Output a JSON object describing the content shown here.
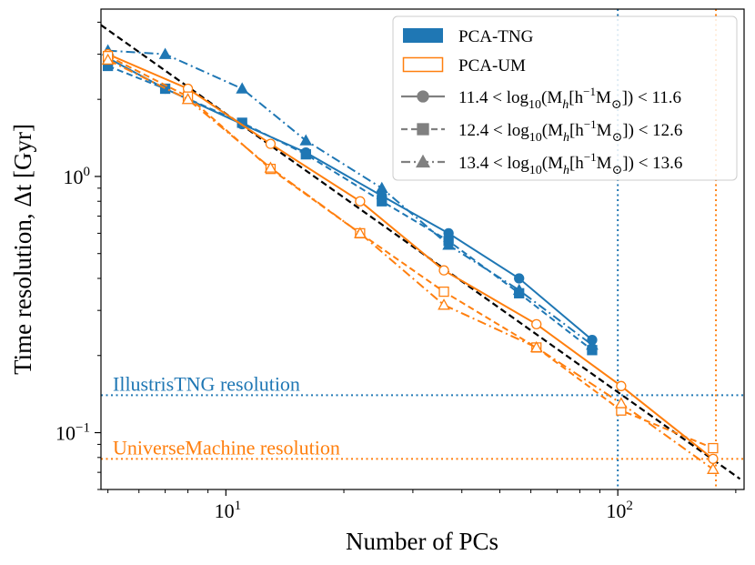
{
  "chart_data": {
    "type": "line",
    "xscale": "log",
    "yscale": "log",
    "xlim": [
      4.8,
      210
    ],
    "ylim": [
      0.06,
      4.5
    ],
    "xlabel": "Number of PCs",
    "ylabel": "Time resolution, Δt [Gyr]",
    "x_ticks": [
      {
        "value": 10,
        "label": "10",
        "exp": "1"
      },
      {
        "value": 100,
        "label": "10",
        "exp": "2"
      }
    ],
    "y_ticks": [
      {
        "value": 0.1,
        "label": "10",
        "exp": "−1"
      },
      {
        "value": 1,
        "label": "10",
        "exp": "0"
      }
    ],
    "colors": {
      "tng": "#1f77b4",
      "um": "#ff7f0e",
      "legend_gray": "#808080",
      "fit": "#000000"
    },
    "legend": {
      "placement": "top-right",
      "entries": [
        {
          "key": "tng",
          "label": "PCA-TNG",
          "type": "patch-filled"
        },
        {
          "key": "um",
          "label": "PCA-UM",
          "type": "patch-open"
        },
        {
          "key": "mass1",
          "label_pre": "11.4 < log",
          "label_post": "(M",
          "h_sub": "h",
          "unit": "[h",
          "sup": "−1",
          "unit2": "M",
          "sun": "⊙",
          "label_end": "]) < 11.6",
          "sub10": "10",
          "marker": "circle",
          "dash": "solid"
        },
        {
          "key": "mass2",
          "label_pre": "12.4 < log",
          "label_post": "(M",
          "h_sub": "h",
          "unit": "[h",
          "sup": "−1",
          "unit2": "M",
          "sun": "⊙",
          "label_end": "]) < 12.6",
          "sub10": "10",
          "marker": "square",
          "dash": "dashed"
        },
        {
          "key": "mass3",
          "label_pre": "13.4 < log",
          "label_post": "(M",
          "h_sub": "h",
          "unit": "[h",
          "sup": "−1",
          "unit2": "M",
          "sun": "⊙",
          "label_end": "]) < 13.6",
          "sub10": "10",
          "marker": "triangle",
          "dash": "dashdot"
        }
      ]
    },
    "reference_lines": [
      {
        "name": "illustris",
        "orientation": "h",
        "value": 0.14,
        "label": "IllustrisTNG resolution",
        "color": "#1f77b4"
      },
      {
        "name": "universemachine",
        "orientation": "h",
        "value": 0.079,
        "label": "UniverseMachine resolution",
        "color": "#ff7f0e"
      },
      {
        "name": "illustris-npc",
        "orientation": "v",
        "value": 100,
        "color": "#1f77b4"
      },
      {
        "name": "universemachine-npc",
        "orientation": "v",
        "value": 178,
        "color": "#ff7f0e"
      }
    ],
    "fit_line": {
      "x": [
        4.8,
        205
      ],
      "y": [
        3.9,
        0.066
      ],
      "style": "dashed",
      "color": "#000000"
    },
    "series": [
      {
        "name": "PCA-TNG 11.4-11.6",
        "color": "tng",
        "marker": "circle",
        "filled": true,
        "dash": "solid",
        "x": [
          5,
          7,
          11,
          16,
          25,
          37,
          56,
          86
        ],
        "y": [
          2.9,
          2.2,
          1.6,
          1.24,
          0.84,
          0.6,
          0.4,
          0.23
        ]
      },
      {
        "name": "PCA-TNG 12.4-12.6",
        "color": "tng",
        "marker": "square",
        "filled": true,
        "dash": "dashed",
        "x": [
          5,
          7,
          11,
          16,
          25,
          37,
          56,
          86
        ],
        "y": [
          2.7,
          2.2,
          1.62,
          1.22,
          0.8,
          0.56,
          0.35,
          0.21
        ]
      },
      {
        "name": "PCA-TNG 13.4-13.6",
        "color": "tng",
        "marker": "triangle",
        "filled": true,
        "dash": "dashdot",
        "x": [
          5,
          7,
          11,
          16,
          25,
          37,
          56,
          86
        ],
        "y": [
          3.1,
          3.0,
          2.2,
          1.38,
          0.9,
          0.54,
          0.36,
          0.22
        ]
      },
      {
        "name": "PCA-UM 11.4-11.6",
        "color": "um",
        "marker": "circle",
        "filled": false,
        "dash": "solid",
        "x": [
          5,
          8,
          13,
          22,
          36,
          62,
          102,
          175
        ],
        "y": [
          3.0,
          2.2,
          1.34,
          0.8,
          0.43,
          0.265,
          0.152,
          0.079
        ]
      },
      {
        "name": "PCA-UM 12.4-12.6",
        "color": "um",
        "marker": "square",
        "filled": false,
        "dash": "dashed",
        "x": [
          5,
          8,
          13,
          22,
          36,
          62,
          102,
          175
        ],
        "y": [
          2.95,
          2.05,
          1.07,
          0.6,
          0.355,
          0.215,
          0.122,
          0.087
        ]
      },
      {
        "name": "PCA-UM 13.4-13.6",
        "color": "um",
        "marker": "triangle",
        "filled": false,
        "dash": "dashdot",
        "x": [
          5,
          8,
          13,
          22,
          36,
          62,
          102,
          175
        ],
        "y": [
          2.85,
          2.0,
          1.08,
          0.6,
          0.315,
          0.215,
          0.13,
          0.072
        ]
      }
    ]
  }
}
